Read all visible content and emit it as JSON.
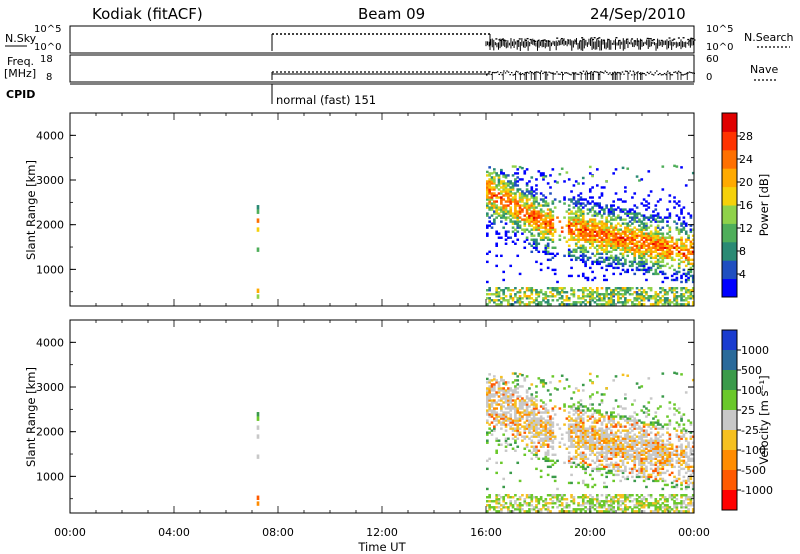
{
  "header": {
    "station": "Kodiak (fitACF)",
    "beam": "Beam 09",
    "date": "24/Sep/2010"
  },
  "status_panels": {
    "nsky_label": "N.Sky",
    "nsearch_label": "N.Search",
    "freq_label_line1": "Freq.",
    "freq_label_line2": "[MHz]",
    "nave_label": "Nave",
    "cpid_label": "CPID",
    "cpid_text": "normal (fast) 151",
    "nsky_ticks": [
      "10^5",
      "10^0"
    ],
    "nsearch_ticks": [
      "10^5",
      "10^0"
    ],
    "freq_ticks": [
      "18",
      "8"
    ],
    "nave_ticks": [
      "60",
      "0"
    ]
  },
  "chart_data": [
    {
      "type": "heatmap",
      "name": "power",
      "ylabel": "Slant Range [km]",
      "ylim": [
        180,
        4500
      ],
      "yticks": [
        "1000",
        "2000",
        "3000",
        "4000"
      ],
      "colorbar_label": "Power [dB]",
      "colorbar_ticks": [
        "4",
        "8",
        "12",
        "16",
        "20",
        "24",
        "28"
      ],
      "colorbar_range": [
        0,
        32
      ],
      "colorbar_colors": [
        "#0000ff",
        "#1f4ec0",
        "#2a8a74",
        "#4fae5a",
        "#8fd24a",
        "#f5d10a",
        "#ffaa00",
        "#ff7000",
        "#ff3300",
        "#e00000"
      ]
    },
    {
      "type": "heatmap",
      "name": "velocity",
      "ylabel": "Slant Range [km]",
      "ylim": [
        180,
        4500
      ],
      "yticks": [
        "1000",
        "2000",
        "3000",
        "4000"
      ],
      "colorbar_label": "Velocity [m s⁻¹]",
      "colorbar_ticks": [
        "1000",
        "500",
        "100",
        "25",
        "-25",
        "-100",
        "-500",
        "-1000"
      ],
      "colorbar_colors": [
        "#1a3ccf",
        "#2a6a9a",
        "#3a9a4a",
        "#6ac82a",
        "#c8c8c8",
        "#f5c020",
        "#ff8c00",
        "#ff5a00",
        "#ff0000"
      ]
    }
  ],
  "time_axis": {
    "xlabel": "Time UT",
    "ticks": [
      "00:00",
      "04:00",
      "08:00",
      "12:00",
      "16:00",
      "20:00",
      "00:00"
    ],
    "range_hours": [
      0,
      24
    ]
  }
}
